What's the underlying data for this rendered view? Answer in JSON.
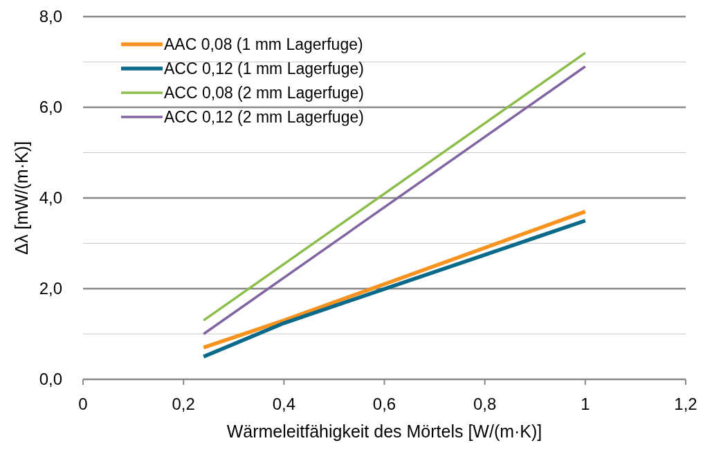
{
  "chart_data": {
    "type": "line",
    "xlabel": "Wärmeleitfähigkeit des Mörtels [W/(m·K)]",
    "ylabel": "Δλ [mW/(m·K)]",
    "xlim": [
      0,
      1.2
    ],
    "ylim": [
      0,
      8
    ],
    "xticks": [
      0,
      {
        "value": 0.2,
        "label": "0,2"
      },
      {
        "value": 0.4,
        "label": "0,4"
      },
      {
        "value": 0.6,
        "label": "0,6"
      },
      {
        "value": 0.8,
        "label": "0,8"
      },
      1,
      {
        "value": 1.2,
        "label": "1,2"
      }
    ],
    "yticks": [
      {
        "value": 0,
        "label": "0,0"
      },
      {
        "value": 1,
        "label": null
      },
      {
        "value": 2,
        "label": "2,0"
      },
      {
        "value": 3,
        "label": null
      },
      {
        "value": 4,
        "label": "4,0"
      },
      {
        "value": 5,
        "label": null
      },
      {
        "value": 6,
        "label": "6,0"
      },
      {
        "value": 7,
        "label": null
      },
      {
        "value": 8,
        "label": "8,0"
      }
    ],
    "grid": "y",
    "legend": "top left",
    "marker": "none",
    "line_style": "solid",
    "series": [
      {
        "name": "AAC 0,08 (1 mm Lagerfuge)",
        "color": "#f7931e",
        "x": [
          0.24,
          0.4,
          1
        ],
        "values": [
          0.7,
          1.3,
          3.7
        ]
      },
      {
        "name": "ACC 0,12 (1 mm Lagerfuge)",
        "color": "#0b6a8a",
        "x": [
          0.24,
          0.4,
          1
        ],
        "values": [
          0.5,
          1.24,
          3.5
        ]
      },
      {
        "name": "ACC 0,08 (2 mm Lagerfuge)",
        "color": "#8cbd4a",
        "x": [
          0.24,
          1
        ],
        "values": [
          1.3,
          7.2
        ]
      },
      {
        "name": "ACC 0,12 (2 mm Lagerfuge)",
        "color": "#8064a2",
        "x": [
          0.24,
          1
        ],
        "values": [
          1.0,
          6.9
        ]
      }
    ]
  }
}
